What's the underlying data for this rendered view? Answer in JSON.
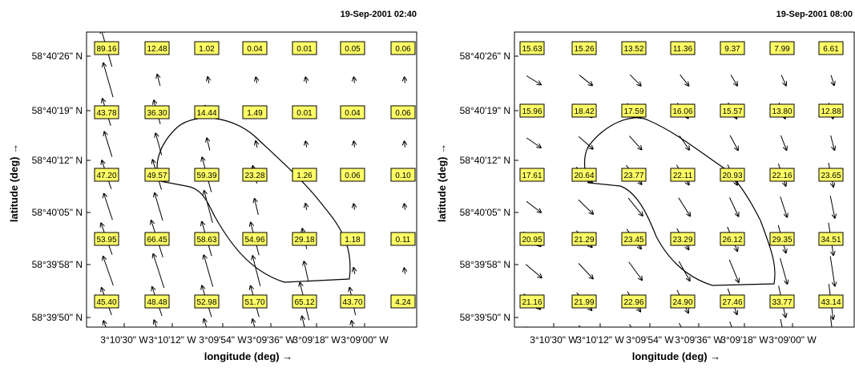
{
  "y_axis_label": "latitude (deg) →",
  "x_axis_label": "longitude (deg) →",
  "latitude_ticks": [
    "58°40'26\" N",
    "58°40'19\" N",
    "58°40'12\" N",
    "58°40'05\" N",
    "58°39'58\" N",
    "58°39'50\" N"
  ],
  "longitude_ticks": [
    "3°10'30\" W",
    "3°10'12\" W",
    "3°09'54\" W",
    "3°09'36\" W",
    "3°09'18\" W",
    "3°09'00\" W"
  ],
  "colors": {
    "label_box": "#ffff66",
    "stroke": "#000000"
  },
  "panels": [
    {
      "timestamp": "19-Sep-2001 02:40",
      "rows": [
        [
          "89.16",
          "12.48",
          "1.02",
          "0.04",
          "0.01",
          "0.05",
          "0.06"
        ],
        [
          "43.78",
          "36.30",
          "14.44",
          "1.49",
          "0.01",
          "0.04",
          "0.06"
        ],
        [
          "47.20",
          "49.57",
          "59.39",
          "23.28",
          "1.26",
          "0.06",
          "0.10"
        ],
        [
          "53.95",
          "66.45",
          "58.63",
          "54.96",
          "29.18",
          "1.18",
          "0.11"
        ],
        [
          "45.40",
          "48.48",
          "52.98",
          "51.70",
          "65.12",
          "43.70",
          "4.24"
        ]
      ]
    },
    {
      "timestamp": "19-Sep-2001 08:00",
      "rows": [
        [
          "15.63",
          "15.26",
          "13.52",
          "11.36",
          "9.37",
          "7.99",
          "6.61"
        ],
        [
          "15.96",
          "18.42",
          "17.59",
          "16.06",
          "15.57",
          "13.80",
          "12.88"
        ],
        [
          "17.61",
          "20.64",
          "23.77",
          "22.11",
          "20.93",
          "22.16",
          "23.65"
        ],
        [
          "20.95",
          "21.29",
          "23.45",
          "23.29",
          "26.12",
          "29.35",
          "34.51"
        ],
        [
          "21.16",
          "21.99",
          "22.96",
          "24.90",
          "27.46",
          "33.77",
          "43.14"
        ]
      ]
    }
  ]
}
